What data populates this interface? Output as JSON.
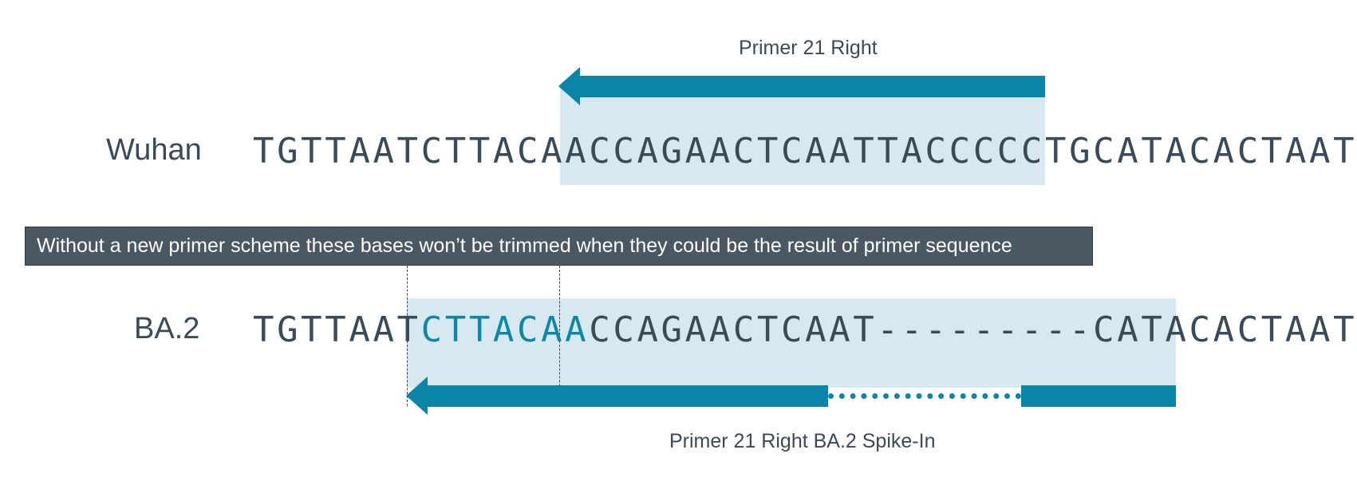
{
  "primer_top": {
    "label": "Primer 21 Right"
  },
  "primer_bottom": {
    "label": "Primer 21 Right BA.2 Spike-In"
  },
  "wuhan": {
    "name": "Wuhan",
    "seq_left": "TGTTAATCTTACAA",
    "seq_primer": "CCAGAACTCAATTACCCCCTGC",
    "seq_right": "ATACACTAATTC"
  },
  "ba2": {
    "name": "BA.2",
    "seq_left": "TGTTAAT",
    "seq_untrimmed": "CTTACAA",
    "seq_rest": "CCAGAACTCAAT---------CATACACTAATTC"
  },
  "banner": {
    "text": "Without a new primer scheme these bases won’t be trimmed when they could be the result of primer sequence"
  },
  "colors": {
    "primer_blue": "#0a84a8",
    "highlight_blue": "#0e86a6",
    "shade": "#d6e9f1",
    "text": "#3b4a57",
    "banner_bg": "#4a5864"
  }
}
